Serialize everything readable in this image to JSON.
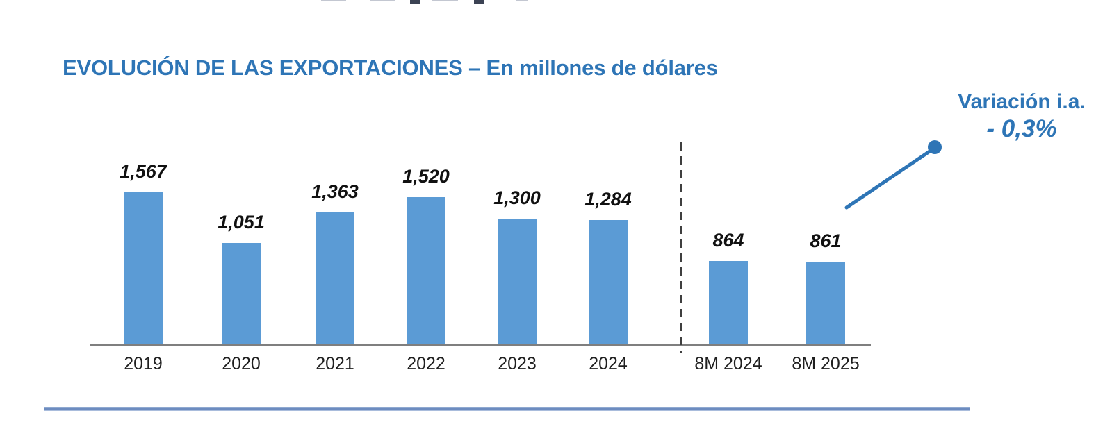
{
  "header": {
    "title": "EVOLUCIÓN DE LAS EXPORTACIONES – En millones de dólares"
  },
  "annotation": {
    "label": "Variación i.a.",
    "value": "- 0,3%"
  },
  "colors": {
    "bar": "#5B9BD5",
    "accent": "#2E75B6",
    "axis": "#7f7f7f",
    "separator": "#3f3f3f",
    "divider": "#6D8CC0"
  },
  "chart_data": {
    "type": "bar",
    "title": "EVOLUCIÓN DE LAS EXPORTACIONES",
    "subtitle": "En millones de dólares",
    "categories": [
      "2019",
      "2020",
      "2021",
      "2022",
      "2023",
      "2024",
      "8M 2024",
      "8M 2025"
    ],
    "values": [
      1567,
      1051,
      1363,
      1520,
      1300,
      1284,
      864,
      861
    ],
    "value_labels": [
      "1,567",
      "1,051",
      "1,363",
      "1,520",
      "1,300",
      "1,284",
      "864",
      "861"
    ],
    "ylim": [
      0,
      1700
    ],
    "grid": false,
    "legend": false,
    "separator_after_category": "2024",
    "annotation_label": "Variación i.a.",
    "annotation_value": "- 0,3%"
  }
}
